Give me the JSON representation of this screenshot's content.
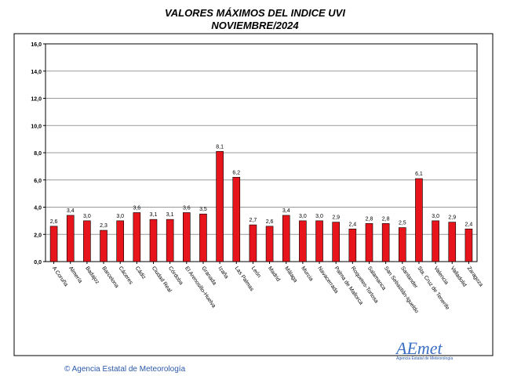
{
  "header": {
    "title": "VALORES MÁXIMOS DEL INDICE UVI",
    "subtitle": "NOVIEMBRE/2024"
  },
  "footer": {
    "copyright": "Agencia Estatal de Meteorología",
    "logo_text": "AEmet",
    "logo_subtext": "Agencia Estatal de Meteorología"
  },
  "colors": {
    "bar": "#e8141c",
    "grid": "#999999",
    "axis": "#000000"
  },
  "chart_data": {
    "type": "bar",
    "title": "VALORES MÁXIMOS DEL INDICE UVI NOVIEMBRE/2024",
    "categories": [
      "A Coruña",
      "Almería",
      "Badajoz",
      "Barcelona",
      "Cáceres",
      "Cádiz",
      "Ciudad Real",
      "Córdoba",
      "El Arenosillo-Huelva",
      "Granada",
      "Izaña",
      "Las Palmas",
      "León",
      "Madrid",
      "Málaga",
      "Murcia",
      "Navacerrada",
      "Palma de Mallorca",
      "Roquetes-Tortosa",
      "Salamanca",
      "San Sebastián-Igueldo",
      "Santander",
      "Sta. Cruz de Tenerife",
      "Valencia",
      "Valladolid",
      "Zaragoza"
    ],
    "values": [
      2.6,
      3.4,
      3.0,
      2.3,
      3.0,
      3.6,
      3.1,
      3.1,
      3.6,
      3.5,
      8.1,
      6.2,
      2.7,
      2.6,
      3.4,
      3.0,
      3.0,
      2.9,
      2.4,
      2.8,
      2.8,
      2.5,
      6.1,
      3.0,
      2.9,
      2.4
    ],
    "value_labels": [
      "2,6",
      "3,4",
      "3,0",
      "2,3",
      "3,0",
      "3,6",
      "3,1",
      "3,1",
      "3,6",
      "3,5",
      "8,1",
      "6,2",
      "2,7",
      "2,6",
      "3,4",
      "3,0",
      "3,0",
      "2,9",
      "2,4",
      "2,8",
      "2,8",
      "2,5",
      "6,1",
      "3,0",
      "2,9",
      "2,4"
    ],
    "yticks": [
      "0,0",
      "2,0",
      "4,0",
      "6,0",
      "8,0",
      "10,0",
      "12,0",
      "14,0",
      "16,0"
    ],
    "ylim": [
      0,
      16
    ],
    "grid": true,
    "legend": "none"
  }
}
